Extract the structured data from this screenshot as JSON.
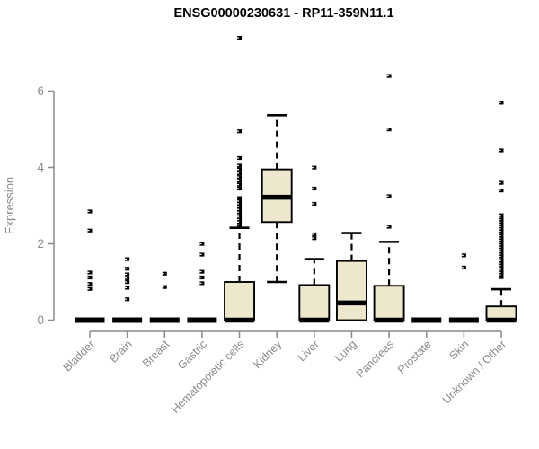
{
  "title": "ENSG00000230631 - RP11-359N11.1",
  "chart_data": {
    "type": "boxplot",
    "title": "ENSG00000230631 - RP11-359N11.1",
    "xlabel": "",
    "ylabel": "Expression",
    "ylim": [
      0,
      6
    ],
    "yticks": [
      0,
      2,
      4,
      6
    ],
    "grid": false,
    "legend": false,
    "categories": [
      "Bladder",
      "Brain",
      "Breast",
      "Gastric",
      "Hematopoietic cells",
      "Kidney",
      "Liver",
      "Lung",
      "Pancreas",
      "Prostate",
      "Skin",
      "Unknown / Other"
    ],
    "series": [
      {
        "category": "Bladder",
        "low": 0,
        "q1": 0,
        "median": 0,
        "q3": 0,
        "high": 0,
        "outliers": [
          2.85,
          2.35,
          1.25,
          1.12,
          0.95,
          0.82
        ]
      },
      {
        "category": "Brain",
        "low": 0,
        "q1": 0,
        "median": 0,
        "q3": 0,
        "high": 0,
        "outliers": [
          1.6,
          1.35,
          1.2,
          1.1,
          1.0,
          0.85,
          0.55
        ]
      },
      {
        "category": "Breast",
        "low": 0,
        "q1": 0,
        "median": 0,
        "q3": 0,
        "high": 0,
        "outliers": [
          1.22,
          0.87
        ]
      },
      {
        "category": "Gastric",
        "low": 0,
        "q1": 0,
        "median": 0,
        "q3": 0,
        "high": 0,
        "outliers": [
          2.0,
          1.72,
          1.27,
          1.12,
          0.97
        ]
      },
      {
        "category": "Hematopoietic cells",
        "low": 0,
        "q1": 0,
        "median": 0,
        "q3": 1.0,
        "high": 2.42,
        "outliers": [
          7.4,
          4.95,
          4.25,
          4.05,
          3.95,
          3.85,
          3.75,
          3.65,
          3.55,
          3.45,
          3.2,
          3.12,
          3.05,
          2.98,
          2.9,
          2.83,
          2.76,
          2.7,
          2.63,
          2.57,
          2.5
        ]
      },
      {
        "category": "Kidney",
        "low": 1.0,
        "q1": 2.57,
        "median": 3.22,
        "q3": 3.95,
        "high": 5.37,
        "outliers": []
      },
      {
        "category": "Liver",
        "low": 0,
        "q1": 0,
        "median": 0,
        "q3": 0.92,
        "high": 1.6,
        "outliers": [
          4.0,
          3.45,
          3.05,
          2.25,
          2.15
        ]
      },
      {
        "category": "Lung",
        "low": 0,
        "q1": 0,
        "median": 0.45,
        "q3": 1.55,
        "high": 2.28,
        "outliers": []
      },
      {
        "category": "Pancreas",
        "low": 0,
        "q1": 0,
        "median": 0,
        "q3": 0.9,
        "high": 2.05,
        "outliers": [
          6.4,
          5.0,
          3.25,
          2.45
        ]
      },
      {
        "category": "Prostate",
        "low": 0,
        "q1": 0,
        "median": 0,
        "q3": 0,
        "high": 0,
        "outliers": []
      },
      {
        "category": "Skin",
        "low": 0,
        "q1": 0,
        "median": 0,
        "q3": 0,
        "high": 0,
        "outliers": [
          1.7,
          1.38
        ]
      },
      {
        "category": "Unknown / Other",
        "low": 0,
        "q1": 0,
        "median": 0,
        "q3": 0.36,
        "high": 0.81,
        "outliers": [
          5.7,
          4.45,
          3.6,
          3.4,
          2.75,
          2.69,
          2.63,
          2.57,
          2.51,
          2.45,
          2.39,
          2.33,
          2.27,
          2.21,
          2.15,
          2.09,
          2.03,
          1.97,
          1.91,
          1.85,
          1.79,
          1.73,
          1.67,
          1.61,
          1.55,
          1.49,
          1.43,
          1.37,
          1.31,
          1.25,
          1.19,
          1.13
        ]
      }
    ],
    "colors": {
      "box_fill": "#ede8cd",
      "box_stroke": "#000000",
      "median": "#000000",
      "outlier": "#000000",
      "axis": "#8a8a8a",
      "title_color": "#000000",
      "background": "#ffffff"
    }
  }
}
